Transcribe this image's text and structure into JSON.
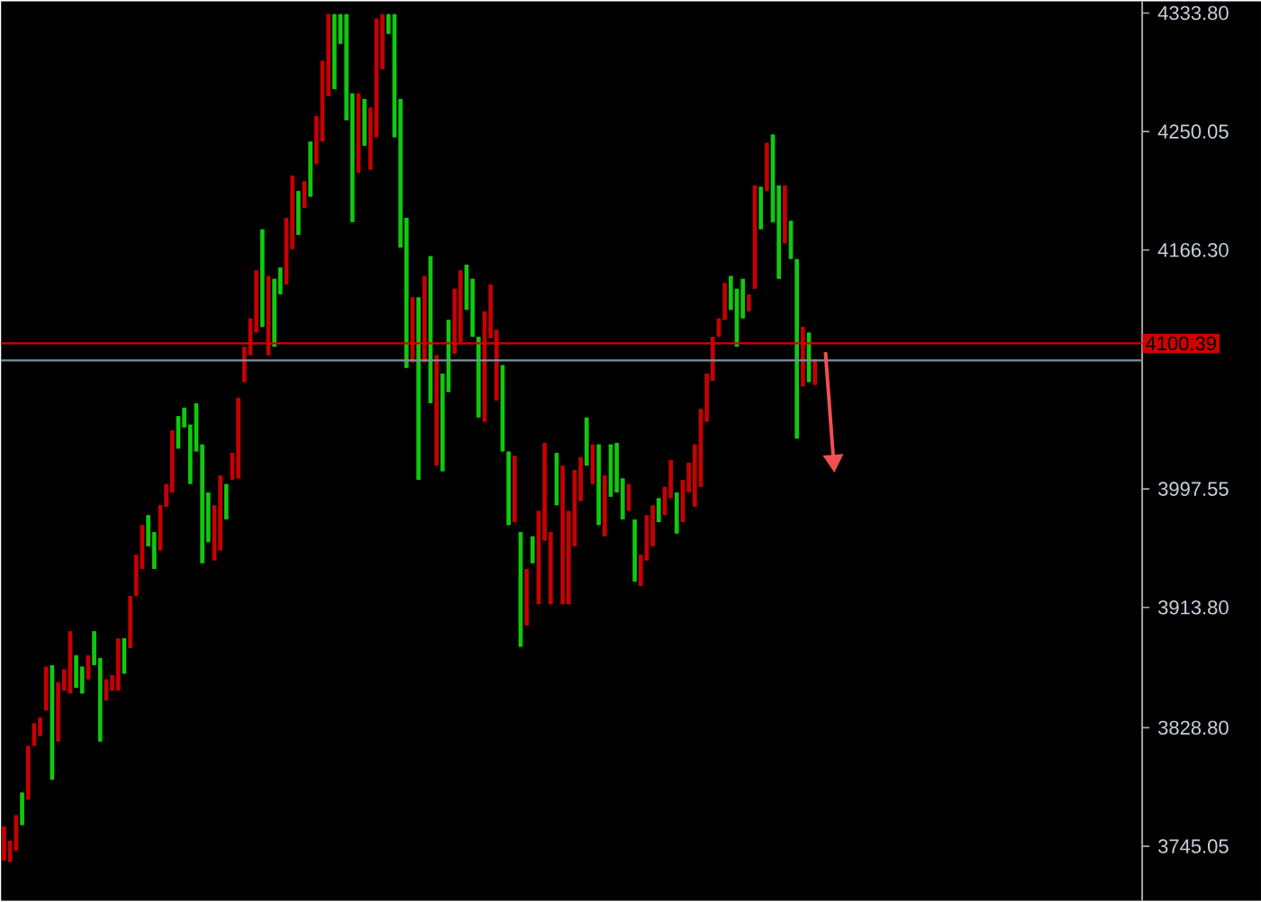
{
  "chart_data": {
    "type": "candlestick",
    "categories": [
      null,
      null,
      null,
      null,
      null,
      null,
      null,
      null,
      null,
      null,
      null,
      null,
      null,
      null,
      null,
      null,
      null,
      null,
      null,
      null,
      null,
      null,
      null,
      null,
      null,
      null,
      null,
      null,
      null,
      null,
      null,
      null,
      null,
      null,
      null,
      null,
      null,
      null,
      null,
      null,
      null,
      null,
      null,
      null,
      null,
      null,
      null,
      null,
      null,
      null,
      null,
      null,
      null,
      null,
      null,
      null,
      null,
      null,
      null,
      null,
      null,
      null,
      null,
      null,
      null,
      null,
      null,
      null,
      null,
      null,
      null,
      null,
      null,
      null,
      null,
      null,
      null,
      null,
      null,
      null,
      null,
      null,
      null,
      null,
      null,
      null,
      null,
      null,
      null,
      null,
      null,
      null,
      null,
      null,
      null,
      null,
      null,
      null,
      null,
      null,
      null,
      null,
      null,
      null,
      null,
      null,
      null,
      null,
      null,
      null,
      null,
      null,
      null,
      null,
      null,
      null,
      null,
      null,
      null,
      null,
      null,
      null,
      null,
      null,
      null,
      null,
      null,
      null,
      null,
      null,
      null,
      null,
      null,
      null,
      null,
      null,
      null,
      null,
      null,
      null,
      null,
      null,
      null,
      null,
      null,
      null,
      null,
      null,
      null,
      null,
      null,
      null,
      null,
      null,
      null,
      null,
      null,
      null,
      null,
      null,
      null,
      null,
      null,
      null,
      null,
      null,
      null,
      null,
      null,
      null,
      null,
      null,
      null,
      null,
      null,
      null,
      null,
      null,
      null,
      null,
      null,
      null,
      null,
      null,
      null,
      null,
      null,
      null,
      null,
      null
    ],
    "ohlc": [
      [
        3759,
        3759,
        3735,
        3735
      ],
      [
        3749,
        3749,
        3734,
        3734
      ],
      [
        3767,
        3767,
        3742,
        3742
      ],
      [
        3760,
        3783,
        3760,
        3783
      ],
      [
        3816,
        3816,
        3778,
        3778
      ],
      [
        3832,
        3832,
        3816,
        3816
      ],
      [
        3836,
        3836,
        3823,
        3823
      ],
      [
        3872,
        3872,
        3841,
        3841
      ],
      [
        3792,
        3873,
        3792,
        3873
      ],
      [
        3861,
        3861,
        3819,
        3819
      ],
      [
        3870,
        3870,
        3855,
        3855
      ],
      [
        3897,
        3897,
        3853,
        3853
      ],
      [
        3857,
        3880,
        3857,
        3880
      ],
      [
        3853,
        3872,
        3853,
        3872
      ],
      [
        3880,
        3880,
        3863,
        3863
      ],
      [
        3873,
        3897,
        3873,
        3897
      ],
      [
        3819,
        3878,
        3819,
        3878
      ],
      [
        3863,
        3863,
        3848,
        3848
      ],
      [
        3866,
        3866,
        3855,
        3855
      ],
      [
        3892,
        3892,
        3855,
        3855
      ],
      [
        3867,
        3892,
        3867,
        3892
      ],
      [
        3922,
        3922,
        3885,
        3885
      ],
      [
        3951,
        3951,
        3922,
        3922
      ],
      [
        3972,
        3972,
        3941,
        3941
      ],
      [
        3957,
        3979,
        3957,
        3979
      ],
      [
        3941,
        3967,
        3941,
        3967
      ],
      [
        3986,
        3986,
        3954,
        3954
      ],
      [
        4001,
        4001,
        3985,
        3985
      ],
      [
        4039,
        4039,
        3995,
        3995
      ],
      [
        4026,
        4049,
        4026,
        4049
      ],
      [
        4041,
        4055,
        4041,
        4055
      ],
      [
        4001,
        4043,
        4001,
        4043
      ],
      [
        4024,
        4058,
        4024,
        4058
      ],
      [
        3945,
        4029,
        3945,
        4029
      ],
      [
        3960,
        3995,
        3960,
        3995
      ],
      [
        3986,
        3986,
        3947,
        3947
      ],
      [
        4007,
        4007,
        3954,
        3954
      ],
      [
        3976,
        4001,
        3976,
        4001
      ],
      [
        4023,
        4023,
        4004,
        4004
      ],
      [
        4062,
        4062,
        4005,
        4005
      ],
      [
        4098,
        4098,
        4073,
        4073
      ],
      [
        4118,
        4118,
        4092,
        4092
      ],
      [
        4152,
        4152,
        4108,
        4108
      ],
      [
        4112,
        4181,
        4112,
        4181
      ],
      [
        4148,
        4148,
        4092,
        4092
      ],
      [
        4098,
        4146,
        4098,
        4146
      ],
      [
        4135,
        4154,
        4135,
        4154
      ],
      [
        4189,
        4189,
        4142,
        4142
      ],
      [
        4219,
        4219,
        4167,
        4167
      ],
      [
        4177,
        4208,
        4177,
        4208
      ],
      [
        4215,
        4215,
        4196,
        4196
      ],
      [
        4204,
        4243,
        4204,
        4243
      ],
      [
        4261,
        4261,
        4227,
        4227
      ],
      [
        4300,
        4300,
        4243,
        4243
      ],
      [
        4333,
        4333,
        4275,
        4275
      ],
      [
        4280,
        4333,
        4280,
        4333
      ],
      [
        4312,
        4333,
        4312,
        4333
      ],
      [
        4258,
        4333,
        4258,
        4333
      ],
      [
        4186,
        4277,
        4186,
        4277
      ],
      [
        4277,
        4277,
        4221,
        4221
      ],
      [
        4240,
        4273,
        4240,
        4273
      ],
      [
        4267,
        4267,
        4223,
        4223
      ],
      [
        4330,
        4330,
        4246,
        4246
      ],
      [
        4333,
        4333,
        4294,
        4294
      ],
      [
        4319,
        4333,
        4319,
        4333
      ],
      [
        4246,
        4333,
        4246,
        4333
      ],
      [
        4168,
        4273,
        4168,
        4273
      ],
      [
        4083,
        4189,
        4083,
        4189
      ],
      [
        4133,
        4133,
        4087,
        4087
      ],
      [
        4004,
        4133,
        4004,
        4133
      ],
      [
        4148,
        4148,
        4087,
        4087
      ],
      [
        4058,
        4162,
        4058,
        4162
      ],
      [
        4092,
        4092,
        4014,
        4014
      ],
      [
        4010,
        4079,
        4010,
        4079
      ],
      [
        4066,
        4117,
        4066,
        4117
      ],
      [
        4139,
        4139,
        4093,
        4093
      ],
      [
        4152,
        4152,
        4101,
        4101
      ],
      [
        4124,
        4156,
        4124,
        4156
      ],
      [
        4105,
        4146,
        4105,
        4146
      ],
      [
        4048,
        4105,
        4048,
        4105
      ],
      [
        4123,
        4123,
        4045,
        4045
      ],
      [
        4142,
        4142,
        4104,
        4104
      ],
      [
        4110,
        4110,
        4060,
        4060
      ],
      [
        4024,
        4085,
        4024,
        4085
      ],
      [
        3972,
        4024,
        3972,
        4024
      ],
      [
        4021,
        4021,
        3974,
        3974
      ],
      [
        3886,
        3967,
        3886,
        3967
      ],
      [
        3941,
        3941,
        3901,
        3901
      ],
      [
        3945,
        3964,
        3945,
        3964
      ],
      [
        3982,
        3982,
        3916,
        3916
      ],
      [
        4030,
        4030,
        3961,
        3961
      ],
      [
        3967,
        3967,
        3916,
        3916
      ],
      [
        3986,
        4023,
        3986,
        4023
      ],
      [
        4014,
        4014,
        3916,
        3916
      ],
      [
        3982,
        3982,
        3916,
        3916
      ],
      [
        4011,
        4011,
        3957,
        3957
      ],
      [
        4020,
        4020,
        3989,
        3989
      ],
      [
        4014,
        4048,
        4014,
        4048
      ],
      [
        4029,
        4029,
        4001,
        4001
      ],
      [
        3972,
        4029,
        3972,
        4029
      ],
      [
        4007,
        4007,
        3964,
        3964
      ],
      [
        3992,
        4029,
        3992,
        4029
      ],
      [
        3995,
        4030,
        3995,
        4030
      ],
      [
        3976,
        4005,
        3976,
        4005
      ],
      [
        4001,
        4001,
        3982,
        3982
      ],
      [
        3932,
        3976,
        3932,
        3976
      ],
      [
        3951,
        3951,
        3929,
        3929
      ],
      [
        3979,
        3979,
        3947,
        3947
      ],
      [
        3986,
        3986,
        3957,
        3957
      ],
      [
        3974,
        3991,
        3974,
        3991
      ],
      [
        3999,
        3999,
        3979,
        3979
      ],
      [
        4018,
        4018,
        3991,
        3991
      ],
      [
        3966,
        3995,
        3966,
        3995
      ],
      [
        4004,
        4004,
        3974,
        3974
      ],
      [
        4016,
        4016,
        3995,
        3995
      ],
      [
        4029,
        4029,
        3985,
        3985
      ],
      [
        4054,
        4054,
        3999,
        3999
      ],
      [
        4079,
        4079,
        4045,
        4045
      ],
      [
        4105,
        4105,
        4074,
        4074
      ],
      [
        4118,
        4118,
        4105,
        4105
      ],
      [
        4143,
        4143,
        4117,
        4117
      ],
      [
        4124,
        4148,
        4124,
        4148
      ],
      [
        4098,
        4139,
        4098,
        4139
      ],
      [
        4118,
        4146,
        4118,
        4146
      ],
      [
        4135,
        4135,
        4123,
        4123
      ],
      [
        4212,
        4212,
        4139,
        4139
      ],
      [
        4181,
        4211,
        4181,
        4211
      ],
      [
        4242,
        4242,
        4208,
        4208
      ],
      [
        4186,
        4248,
        4186,
        4248
      ],
      [
        4146,
        4212,
        4146,
        4212
      ],
      [
        4212,
        4212,
        4171,
        4171
      ],
      [
        4160,
        4187,
        4160,
        4187
      ],
      [
        4033,
        4160,
        4033,
        4160
      ],
      [
        4112,
        4112,
        4070,
        4070
      ],
      [
        4073,
        4108,
        4073,
        4108
      ],
      [
        4089,
        4089,
        4071,
        4071
      ],
      null,
      null,
      null,
      null,
      null,
      null,
      null,
      null,
      null,
      null,
      null,
      null,
      null,
      null,
      null,
      null,
      null,
      null,
      null,
      null,
      null,
      null,
      null,
      null,
      null,
      null,
      null,
      null,
      null,
      null,
      null,
      null,
      null,
      null,
      null,
      null,
      null,
      null,
      null,
      null,
      null,
      null,
      null,
      null,
      null,
      null,
      null,
      null,
      null,
      null,
      null,
      null,
      null,
      null
    ],
    "colors": [
      "#c80000",
      "#c80000",
      "#c80000",
      "#10c810",
      "#c80000",
      "#c80000",
      "#c80000",
      "#c80000",
      "#10c810",
      "#c80000",
      "#c80000",
      "#c80000",
      "#10c810",
      "#10c810",
      "#c80000",
      "#10c810",
      "#10c810",
      "#c80000",
      "#c80000",
      "#c80000",
      "#10c810",
      "#c80000",
      "#c80000",
      "#c80000",
      "#10c810",
      "#10c810",
      "#c80000",
      "#c80000",
      "#c80000",
      "#10c810",
      "#10c810",
      "#10c810",
      "#10c810",
      "#10c810",
      "#10c810",
      "#c80000",
      "#c80000",
      "#10c810",
      "#c80000",
      "#c80000",
      "#c80000",
      "#c80000",
      "#c80000",
      "#10c810",
      "#c80000",
      "#10c810",
      "#10c810",
      "#c80000",
      "#c80000",
      "#10c810",
      "#c80000",
      "#10c810",
      "#c80000",
      "#c80000",
      "#c80000",
      "#10c810",
      "#10c810",
      "#10c810",
      "#10c810",
      "#c80000",
      "#10c810",
      "#c80000",
      "#c80000",
      "#c80000",
      "#10c810",
      "#10c810",
      "#10c810",
      "#10c810",
      "#c80000",
      "#10c810",
      "#c80000",
      "#10c810",
      "#c80000",
      "#10c810",
      "#10c810",
      "#c80000",
      "#c80000",
      "#10c810",
      "#10c810",
      "#10c810",
      "#c80000",
      "#c80000",
      "#c80000",
      "#10c810",
      "#10c810",
      "#c80000",
      "#10c810",
      "#c80000",
      "#10c810",
      "#c80000",
      "#c80000",
      "#c80000",
      "#10c810",
      "#c80000",
      "#c80000",
      "#c80000",
      "#c80000",
      "#10c810",
      "#c80000",
      "#10c810",
      "#c80000",
      "#10c810",
      "#10c810",
      "#10c810",
      "#c80000",
      "#10c810",
      "#c80000",
      "#c80000",
      "#c80000",
      "#10c810",
      "#c80000",
      "#c80000",
      "#10c810",
      "#c80000",
      "#c80000",
      "#c80000",
      "#c80000",
      "#c80000",
      "#c80000",
      "#c80000",
      "#c80000",
      "#10c810",
      "#10c810",
      "#10c810",
      "#c80000",
      "#c80000",
      "#10c810",
      "#c80000",
      "#10c810",
      "#10c810",
      "#c80000",
      "#10c810",
      "#10c810",
      "#c80000",
      "#10c810",
      "#c80000",
      null,
      null,
      null,
      null,
      null,
      null,
      null,
      null,
      null,
      null,
      null,
      null,
      null,
      null,
      null,
      null,
      null,
      null,
      null,
      null,
      null,
      null,
      null,
      null,
      null,
      null,
      null,
      null,
      null,
      null,
      null,
      null,
      null,
      null,
      null,
      null,
      null,
      null,
      null,
      null,
      null,
      null,
      null,
      null,
      null,
      null,
      null,
      null,
      null,
      null,
      null,
      null,
      null,
      null
    ],
    "ylim": [
      3706.5,
      4342
    ],
    "yticks": [
      3745.05,
      {
        "value": 3828.8,
        "label": "3828.80"
      },
      {
        "value": 3913.8,
        "label": "3913.80"
      },
      3997.55,
      {
        "value": 4166.3,
        "label": "4166.30"
      },
      4250.05,
      {
        "value": 4333.8,
        "label": "4333.80"
      }
    ],
    "tick_labels": "y",
    "ref_lines": [
      {
        "axis": "y",
        "value": 4100.39,
        "label": "4100.39",
        "color": "#d00000"
      },
      {
        "axis": "y",
        "value": 4088.3,
        "color": "#8090a0"
      }
    ]
  }
}
